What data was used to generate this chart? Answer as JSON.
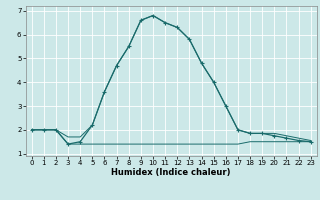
{
  "xlabel": "Humidex (Indice chaleur)",
  "background_color": "#cce8e8",
  "grid_color": "#ffffff",
  "line_color": "#1a6b6b",
  "x_values": [
    0,
    1,
    2,
    3,
    4,
    5,
    6,
    7,
    8,
    9,
    10,
    11,
    12,
    13,
    14,
    15,
    16,
    17,
    18,
    19,
    20,
    21,
    22,
    23
  ],
  "y_main": [
    2.0,
    2.0,
    2.0,
    1.4,
    1.5,
    2.2,
    3.6,
    4.7,
    5.5,
    6.6,
    6.8,
    6.5,
    6.3,
    5.8,
    4.8,
    4.0,
    3.0,
    2.0,
    1.85,
    1.85,
    1.75,
    1.65,
    1.55,
    1.5
  ],
  "y_min": [
    2.0,
    2.0,
    2.0,
    1.4,
    1.4,
    1.4,
    1.4,
    1.4,
    1.4,
    1.4,
    1.4,
    1.4,
    1.4,
    1.4,
    1.4,
    1.4,
    1.4,
    1.4,
    1.5,
    1.5,
    1.5,
    1.5,
    1.5,
    1.5
  ],
  "y_max": [
    2.0,
    2.0,
    2.0,
    1.7,
    1.7,
    2.2,
    3.6,
    4.7,
    5.5,
    6.6,
    6.8,
    6.5,
    6.3,
    5.8,
    4.8,
    4.0,
    3.0,
    2.0,
    1.85,
    1.85,
    1.85,
    1.75,
    1.65,
    1.55
  ],
  "ylim": [
    0.9,
    7.2
  ],
  "xlim": [
    -0.5,
    23.5
  ],
  "yticks": [
    1,
    2,
    3,
    4,
    5,
    6,
    7
  ],
  "tick_fontsize": 5.0,
  "label_fontsize": 6.0
}
